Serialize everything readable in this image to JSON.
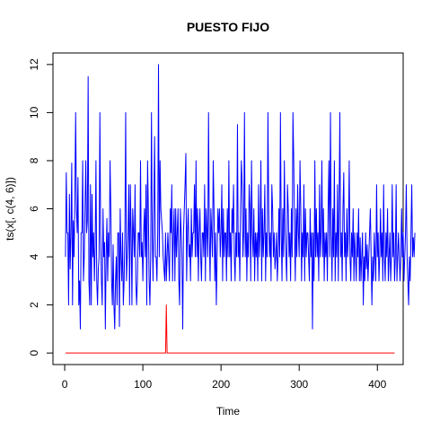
{
  "chart_data": {
    "type": "line",
    "title": "PUESTO FIJO",
    "xlabel": "Time",
    "ylabel": "ts(x[, c(4, 6)])",
    "xlim": [
      -15,
      433
    ],
    "ylim": [
      -0.48,
      12.48
    ],
    "x_ticks": [
      0,
      100,
      200,
      300,
      400
    ],
    "y_ticks": [
      0,
      2,
      4,
      6,
      8,
      10,
      12
    ],
    "grid": false,
    "legend": "none",
    "n_points": 417,
    "series": [
      {
        "color": "#0000ff",
        "x_start": 1,
        "values": [
          4,
          7.5,
          5,
          5,
          2,
          6.6,
          3.5,
          5,
          7.9,
          2,
          5.5,
          4,
          6.5,
          10,
          6,
          5,
          7.3,
          2,
          3,
          1,
          5,
          5,
          8,
          3,
          4,
          6,
          8,
          5,
          5.5,
          11.5,
          3,
          2,
          7,
          2,
          6.6,
          4,
          5,
          3,
          4.5,
          8,
          3,
          2,
          3.5,
          4,
          10,
          5,
          3,
          2,
          6,
          4,
          4.6,
          1,
          4,
          5.6,
          3,
          5,
          4,
          8,
          6,
          3,
          2,
          4.5,
          2,
          1,
          3,
          4,
          2,
          5,
          5,
          1.1,
          6,
          4,
          3,
          5,
          2,
          3,
          5,
          10,
          3,
          4,
          5,
          7,
          2,
          7,
          5,
          2,
          6,
          5,
          4,
          7,
          3,
          2,
          3,
          5,
          5,
          4,
          8,
          4,
          4.6,
          3,
          5,
          6,
          4,
          7,
          2,
          8,
          6,
          3,
          2,
          4,
          10,
          5,
          3,
          6,
          9,
          4,
          4,
          3,
          5,
          12,
          4,
          8,
          6,
          5.5,
          5,
          4,
          3.5,
          3,
          5,
          3,
          4,
          5,
          4,
          3,
          6,
          5,
          7,
          3,
          5,
          6,
          3,
          6,
          4,
          5,
          6,
          3,
          2,
          6,
          5,
          4,
          1,
          5,
          6,
          7,
          8.3,
          3,
          5,
          6,
          4,
          4.5,
          3,
          6,
          4,
          5,
          5,
          7,
          4,
          8,
          4,
          6,
          3,
          5,
          6,
          4,
          3,
          5,
          5,
          4,
          7,
          3,
          6,
          5,
          4,
          10,
          5,
          3,
          6,
          5,
          4,
          8,
          6,
          3,
          5,
          2,
          4,
          6,
          5,
          6,
          4,
          5,
          7,
          3,
          6,
          4,
          5,
          5,
          3,
          6,
          4,
          8,
          4,
          5,
          3,
          6,
          5,
          7,
          4,
          3,
          5,
          4,
          9.5,
          4,
          5,
          3,
          6,
          8,
          7,
          4,
          5,
          10,
          4,
          6,
          3,
          5,
          4,
          7,
          6,
          3,
          8,
          5,
          4,
          6,
          3,
          5,
          4,
          5,
          3,
          7,
          4,
          5,
          8,
          3,
          6,
          4,
          5,
          7,
          3,
          5,
          4,
          10,
          6,
          4,
          5,
          3,
          7,
          6,
          4,
          5,
          3.5,
          4,
          5,
          3,
          4,
          6,
          4,
          10,
          5,
          3,
          6,
          4,
          8,
          5,
          4,
          3,
          7,
          6,
          4,
          5,
          3,
          6,
          4,
          10,
          8,
          5,
          3,
          6,
          4,
          7,
          5,
          4,
          8,
          6,
          3,
          5,
          4,
          7,
          3,
          6,
          4,
          5,
          5,
          4,
          3,
          6,
          4,
          5,
          1,
          5,
          3,
          8,
          4,
          6,
          4,
          5,
          3,
          7,
          4,
          5,
          8,
          4,
          6,
          3,
          5,
          4,
          5,
          3,
          6,
          8,
          4,
          10,
          5,
          3,
          6,
          4,
          8,
          3,
          5,
          4,
          7,
          3,
          6,
          10,
          4,
          5,
          3,
          6,
          7.5,
          4,
          5,
          3,
          6,
          4,
          5,
          8,
          4,
          3,
          5,
          4,
          6,
          3,
          5,
          4,
          3,
          5,
          4,
          6,
          3,
          4.8,
          3,
          4,
          5,
          2,
          4,
          3,
          5,
          3.5,
          4.5,
          3,
          4,
          5,
          6,
          4,
          2,
          4,
          3,
          5,
          4,
          3,
          7,
          4,
          5,
          3,
          4,
          6,
          4,
          5,
          3,
          7,
          4,
          3,
          5,
          4,
          6,
          3,
          4,
          5,
          3,
          4,
          7,
          4,
          5,
          3,
          4,
          7,
          3,
          4,
          5,
          4,
          3,
          4,
          6,
          4,
          5,
          3,
          4,
          5,
          7,
          4,
          3,
          2,
          4,
          3,
          5,
          7,
          4,
          4.8,
          4,
          5
        ]
      },
      {
        "color": "#ff0000",
        "x_start": 1,
        "values": [
          0,
          0,
          0,
          0,
          0,
          0,
          0,
          0,
          0,
          0,
          0,
          0,
          0,
          0,
          0,
          0,
          0,
          0,
          0,
          0,
          0,
          0,
          0,
          0,
          0,
          0,
          0,
          0,
          0,
          0,
          0,
          0,
          0,
          0,
          0,
          0,
          0,
          0,
          0,
          0,
          0,
          0,
          0,
          0,
          0,
          0,
          0,
          0,
          0,
          0,
          0,
          0,
          0,
          0,
          0,
          0,
          0,
          0,
          0,
          0,
          0,
          0,
          0,
          0,
          0,
          0,
          0,
          0,
          0,
          0,
          0,
          0,
          0,
          0,
          0,
          0,
          0,
          0,
          0,
          0,
          0,
          0,
          0,
          0,
          0,
          0,
          0,
          0,
          0,
          0,
          0,
          0,
          0,
          0,
          0,
          0,
          0,
          0,
          0,
          0,
          0,
          0,
          0,
          0,
          0,
          0,
          0,
          0,
          0,
          0,
          0,
          0,
          0,
          0,
          0,
          0,
          0,
          0,
          0,
          0,
          0,
          0,
          0,
          0,
          0,
          0,
          0,
          0,
          0,
          2,
          0,
          0,
          0,
          0,
          0,
          0,
          0,
          0,
          0,
          0,
          0,
          0,
          0,
          0,
          0,
          0,
          0,
          0,
          0,
          0,
          0,
          0,
          0,
          0,
          0,
          0,
          0,
          0,
          0,
          0,
          0,
          0,
          0,
          0,
          0,
          0,
          0,
          0,
          0,
          0,
          0,
          0,
          0,
          0,
          0,
          0,
          0,
          0,
          0,
          0,
          0,
          0,
          0,
          0,
          0,
          0,
          0,
          0,
          0,
          0,
          0,
          0,
          0,
          0,
          0,
          0,
          0,
          0,
          0,
          0,
          0,
          0,
          0,
          0,
          0,
          0,
          0,
          0,
          0,
          0,
          0,
          0,
          0,
          0,
          0,
          0,
          0,
          0,
          0,
          0,
          0,
          0,
          0,
          0,
          0,
          0,
          0,
          0,
          0,
          0,
          0,
          0,
          0,
          0,
          0,
          0,
          0,
          0,
          0,
          0,
          0,
          0,
          0,
          0,
          0,
          0,
          0,
          0,
          0,
          0,
          0,
          0,
          0,
          0,
          0,
          0,
          0,
          0,
          0,
          0,
          0,
          0,
          0,
          0,
          0,
          0,
          0,
          0,
          0,
          0,
          0,
          0,
          0,
          0,
          0,
          0,
          0,
          0,
          0,
          0,
          0,
          0,
          0,
          0,
          0,
          0,
          0,
          0,
          0,
          0,
          0,
          0,
          0,
          0,
          0,
          0,
          0,
          0,
          0,
          0,
          0,
          0,
          0,
          0,
          0,
          0,
          0,
          0,
          0,
          0,
          0,
          0,
          0,
          0,
          0,
          0,
          0,
          0,
          0,
          0,
          0,
          0,
          0,
          0,
          0,
          0,
          0,
          0,
          0,
          0,
          0,
          0,
          0,
          0,
          0,
          0,
          0,
          0,
          0,
          0,
          0,
          0,
          0,
          0,
          0,
          0,
          0,
          0,
          0,
          0,
          0,
          0,
          0,
          0,
          0,
          0,
          0,
          0,
          0,
          0,
          0,
          0,
          0,
          0,
          0,
          0,
          0,
          0,
          0,
          0,
          0,
          0,
          0,
          0,
          0,
          0,
          0,
          0,
          0,
          0,
          0,
          0,
          0,
          0,
          0,
          0,
          0,
          0,
          0,
          0,
          0,
          0,
          0,
          0,
          0,
          0,
          0,
          0,
          0,
          0,
          0,
          0,
          0,
          0,
          0,
          0,
          0,
          0,
          0,
          0,
          0,
          0,
          0,
          0,
          0,
          0,
          0,
          0,
          0,
          0,
          0,
          0
        ]
      }
    ]
  }
}
